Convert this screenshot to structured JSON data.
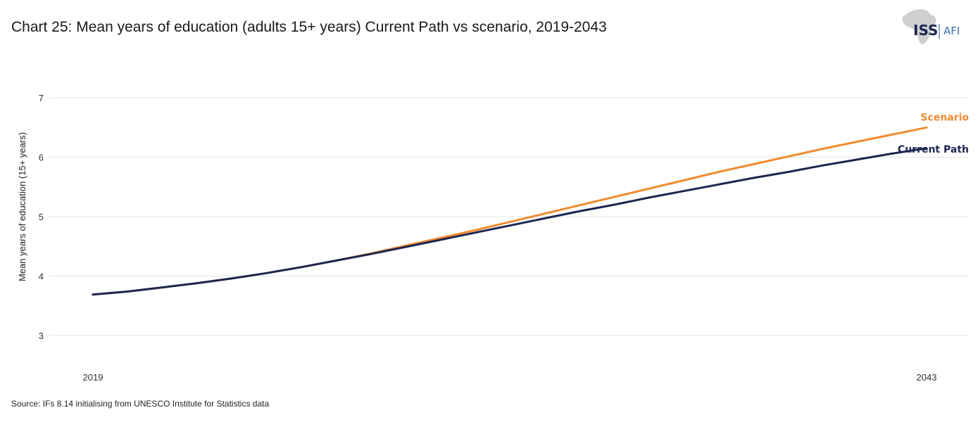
{
  "title": "Chart 25: Mean years of education (adults 15+ years) Current Path vs scenario, 2019-2043",
  "source": "Source: IFs 8.14 initialising from UNESCO Institute for Statistics data",
  "logo": {
    "primary": "ISS",
    "secondary": "AFI",
    "icon": "africa-map-icon"
  },
  "colors": {
    "current_path": "#1c2651",
    "scenario": "#f28a2e",
    "grid": "#e3e3e3",
    "logo_map": "#cfcfcf",
    "logo_text": "#1c2651",
    "logo_accent": "#3a6fb0"
  },
  "chart_data": {
    "type": "line",
    "title": "Chart 25: Mean years of education (adults 15+ years) Current Path vs scenario, 2019-2043",
    "xlabel": "",
    "ylabel": "Mean years of education (15+ years)",
    "x": [
      2019,
      2020,
      2021,
      2022,
      2023,
      2024,
      2025,
      2026,
      2027,
      2028,
      2029,
      2030,
      2031,
      2032,
      2033,
      2034,
      2035,
      2036,
      2037,
      2038,
      2039,
      2040,
      2041,
      2042,
      2043
    ],
    "x_tick_labels": [
      "2019",
      "2043"
    ],
    "ylim": [
      3,
      7
    ],
    "y_ticks": [
      3,
      4,
      5,
      6,
      7
    ],
    "grid": true,
    "legend": "inline-right",
    "series": [
      {
        "name": "Current Path",
        "color": "#1c2651",
        "values": [
          3.69,
          3.74,
          3.81,
          3.88,
          3.96,
          4.05,
          4.15,
          4.26,
          4.37,
          4.49,
          4.61,
          4.73,
          4.85,
          4.97,
          5.09,
          5.2,
          5.32,
          5.43,
          5.54,
          5.65,
          5.75,
          5.86,
          5.96,
          6.06,
          6.15
        ]
      },
      {
        "name": "Scenario",
        "color": "#f28a2e",
        "values": [
          3.69,
          3.74,
          3.81,
          3.88,
          3.96,
          4.05,
          4.15,
          4.26,
          4.38,
          4.51,
          4.64,
          4.77,
          4.91,
          5.05,
          5.19,
          5.33,
          5.47,
          5.61,
          5.75,
          5.88,
          6.01,
          6.14,
          6.26,
          6.38,
          6.5
        ]
      }
    ]
  }
}
